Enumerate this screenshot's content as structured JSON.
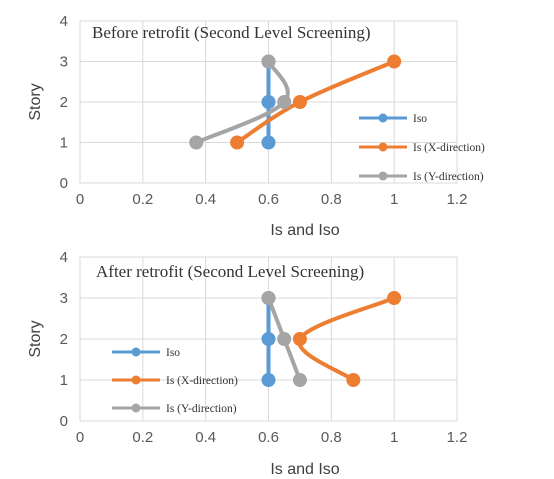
{
  "chart_data": [
    {
      "type": "line",
      "title": "Before retrofit (Second Level Screening)",
      "xlabel": "Is and Iso",
      "ylabel": "Story",
      "xlim": [
        0,
        1.2
      ],
      "ylim": [
        0,
        4
      ],
      "xticks": [
        "0",
        "0.2",
        "0.4",
        "0.6",
        "0.8",
        "1",
        "1.2"
      ],
      "yticks": [
        "0",
        "1",
        "2",
        "3",
        "4"
      ],
      "legend_position": "right",
      "series": [
        {
          "name": "Iso",
          "color": "#5B9BD5",
          "points": [
            [
              0.6,
              1
            ],
            [
              0.6,
              2
            ],
            [
              0.6,
              3
            ]
          ]
        },
        {
          "name": "Is (X-direction)",
          "color": "#ED7D31",
          "points": [
            [
              0.5,
              1
            ],
            [
              0.7,
              2
            ],
            [
              1.0,
              3
            ]
          ]
        },
        {
          "name": "Is (Y-direction)",
          "color": "#A5A5A5",
          "points": [
            [
              0.37,
              1
            ],
            [
              0.65,
              2
            ],
            [
              0.6,
              3
            ]
          ]
        }
      ]
    },
    {
      "type": "line",
      "title": "After retrofit (Second Level Screening)",
      "xlabel": "Is and Iso",
      "ylabel": "Story",
      "xlim": [
        0,
        1.2
      ],
      "ylim": [
        0,
        4
      ],
      "xticks": [
        "0",
        "0.2",
        "0.4",
        "0.6",
        "0.8",
        "1",
        "1.2"
      ],
      "yticks": [
        "0",
        "1",
        "2",
        "3",
        "4"
      ],
      "legend_position": "left",
      "series": [
        {
          "name": "Iso",
          "color": "#5B9BD5",
          "points": [
            [
              0.6,
              1
            ],
            [
              0.6,
              2
            ],
            [
              0.6,
              3
            ]
          ]
        },
        {
          "name": "Is (X-direction)",
          "color": "#ED7D31",
          "points": [
            [
              0.87,
              1
            ],
            [
              0.7,
              2
            ],
            [
              1.0,
              3
            ]
          ]
        },
        {
          "name": "Is (Y-direction)",
          "color": "#A5A5A5",
          "points": [
            [
              0.7,
              1
            ],
            [
              0.65,
              2
            ],
            [
              0.6,
              3
            ]
          ]
        }
      ]
    }
  ]
}
